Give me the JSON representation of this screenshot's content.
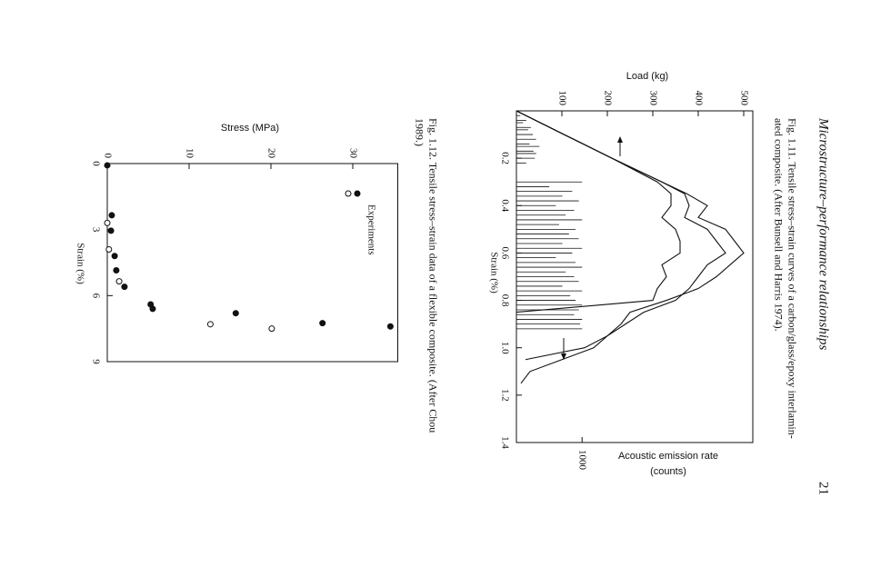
{
  "header": {
    "title": "Microstructure–performance relationships",
    "page": "21"
  },
  "chart_data": [
    {
      "type": "line",
      "caption": [
        "Fig. 1.11.  Tensile stress–strain curves of a carbon/glass/epoxy interlamin-",
        "ated composite. (After Bunsell and Harris 1974)."
      ],
      "xlabel": "Strain (%)",
      "ylabel": "Load (kg)",
      "y2label": [
        "Acoustic emission rate",
        "(counts)"
      ],
      "xlim": [
        0,
        1.4
      ],
      "xticks": [
        0.2,
        0.4,
        0.6,
        0.8,
        {
          "value": 1,
          "label": "1.0"
        },
        1.2,
        1.4
      ],
      "ylim": [
        0,
        520
      ],
      "yticks": [
        100,
        200,
        300,
        400,
        500
      ],
      "y2lim": [
        0,
        3600
      ],
      "y2ticks": [
        1000
      ],
      "x": [
        0,
        0.1,
        0.2,
        0.3,
        0.35,
        0.4,
        0.45,
        0.5,
        0.55,
        0.6,
        0.65,
        0.7,
        0.75,
        0.8,
        0.85,
        0.9,
        0.95,
        1.0,
        1.05,
        1.1,
        1.15,
        1.2
      ],
      "series": [
        {
          "color": "#111111",
          "values": [
            0,
            105,
            210,
            320,
            375,
            420,
            400,
            460,
            480,
            500,
            470,
            440,
            400,
            330,
            250,
            230,
            200,
            170,
            100,
            30,
            10,
            null
          ]
        },
        {
          "color": "#111111",
          "values": [
            0,
            105,
            210,
            320,
            370,
            380,
            370,
            420,
            440,
            460,
            420,
            400,
            380,
            350,
            280,
            240,
            200,
            150,
            20,
            null,
            null,
            null
          ]
        },
        {
          "color": "#111111",
          "values": [
            0,
            105,
            210,
            310,
            340,
            340,
            320,
            350,
            360,
            360,
            320,
            330,
            310,
            300,
            0,
            null,
            null,
            null,
            null,
            null,
            null,
            null
          ]
        }
      ],
      "emission": {
        "axis": "y2",
        "color": "#111111",
        "x": [
          0.02,
          0.04,
          0.05,
          0.07,
          0.08,
          0.1,
          0.12,
          0.14,
          0.15,
          0.17,
          0.18,
          0.2,
          0.22,
          0.3,
          0.32,
          0.34,
          0.36,
          0.38,
          0.4,
          0.42,
          0.44,
          0.46,
          0.48,
          0.5,
          0.52,
          0.54,
          0.56,
          0.58,
          0.6,
          0.62,
          0.64,
          0.66,
          0.68,
          0.7,
          0.72,
          0.74,
          0.76,
          0.78,
          0.8,
          0.82,
          0.84,
          0.86,
          0.88,
          0.9,
          0.92
        ],
        "values": [
          60,
          150,
          100,
          220,
          180,
          250,
          300,
          200,
          350,
          260,
          300,
          280,
          150,
          1000,
          500,
          850,
          700,
          950,
          600,
          880,
          750,
          1000,
          650,
          900,
          800,
          950,
          700,
          1000,
          850,
          600,
          900,
          1000,
          750,
          880,
          950,
          700,
          1000,
          820,
          900,
          1000,
          950,
          880,
          1000,
          970,
          1000
        ]
      }
    },
    {
      "type": "scatter",
      "caption": [
        "Fig. 1.12.  Tensile stress–strain data of a flexible composite. (After Chou",
        "1989.)"
      ],
      "xlabel": "Strain (%)",
      "ylabel": "Stress (MPa)",
      "xlim": [
        0,
        9
      ],
      "xticks": [
        0,
        3,
        6,
        9
      ],
      "ylim": [
        0,
        35.5
      ],
      "yticks": [
        0,
        10,
        20,
        30
      ],
      "series": [
        {
          "name": "Experiments",
          "marker": "filled",
          "color": "#111111",
          "x": [
            0.08,
            2.35,
            3.05,
            4.2,
            4.85,
            5.6,
            6.4,
            6.6,
            6.8,
            7.25,
            7.4
          ],
          "values": [
            0,
            0.55,
            0.45,
            0.9,
            1.1,
            2.1,
            5.3,
            5.55,
            15.7,
            26.3,
            34.6
          ]
        },
        {
          "marker": "open",
          "color": "#111111",
          "x": [
            2.7,
            3.9,
            5.35,
            7.3,
            7.5
          ],
          "values": [
            0,
            0.2,
            1.45,
            12.6,
            20.1
          ]
        }
      ]
    }
  ]
}
